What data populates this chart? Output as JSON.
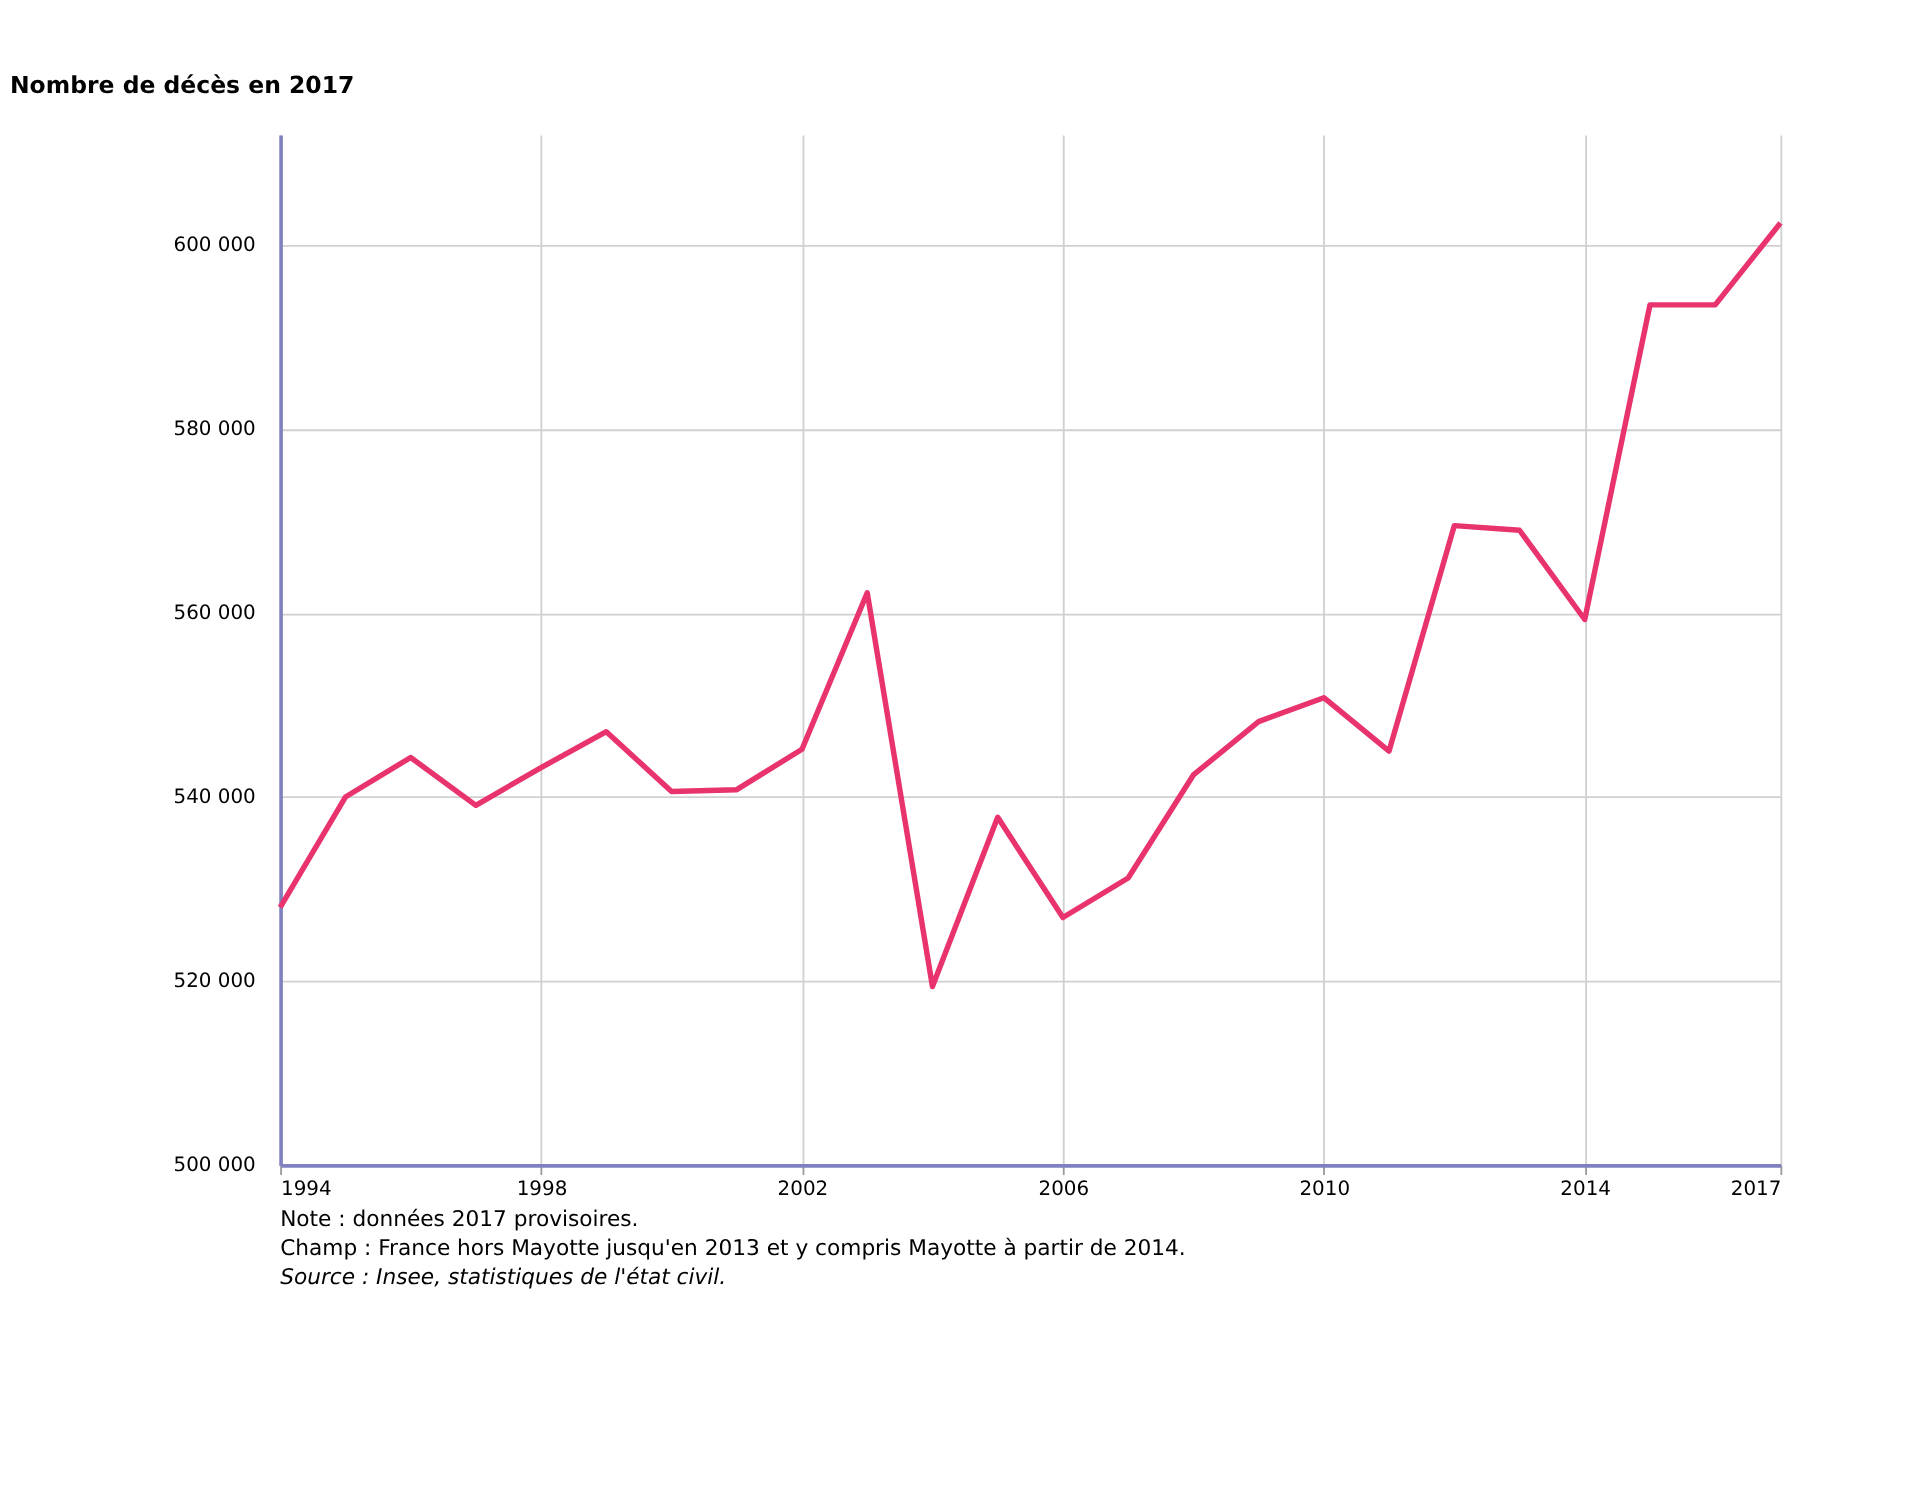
{
  "chart_data": {
    "type": "line",
    "title": "Nombre de décès en 2017",
    "x": [
      1994,
      1995,
      1996,
      1997,
      1998,
      1999,
      2000,
      2001,
      2002,
      2003,
      2004,
      2005,
      2006,
      2007,
      2008,
      2009,
      2010,
      2011,
      2012,
      2013,
      2014,
      2015,
      2016,
      2017
    ],
    "series": [
      {
        "color": "#e8336d",
        "values": [
          528000,
          540000,
          544300,
          539100,
          543200,
          547100,
          540600,
          540800,
          545200,
          562200,
          519400,
          537800,
          526900,
          531200,
          542400,
          548200,
          550800,
          545000,
          569500,
          569000,
          559300,
          593500,
          593500,
          602400
        ]
      }
    ],
    "xlim": [
      1994,
      2017
    ],
    "xticks": [
      1994,
      1998,
      2002,
      2006,
      2010,
      2014,
      2017
    ],
    "ylim": [
      500000,
      612000
    ],
    "yticks": [
      {
        "value": 500000,
        "label": "500 000"
      },
      {
        "value": 520000,
        "label": "520 000"
      },
      {
        "value": 540000,
        "label": "540 000"
      },
      {
        "value": 560000,
        "label": "560 000"
      },
      {
        "value": 580000,
        "label": "580 000"
      },
      {
        "value": 600000,
        "label": "600 000"
      }
    ],
    "grid": true,
    "marker": "none",
    "line_style": "solid",
    "legend": false,
    "annotations": [
      "Note : données 2017 provisoires.",
      "Champ : France hors Mayotte jusqu'en 2013 et y compris Mayotte à partir de 2014.",
      "Source : Insee, statistiques de l'état civil."
    ]
  }
}
